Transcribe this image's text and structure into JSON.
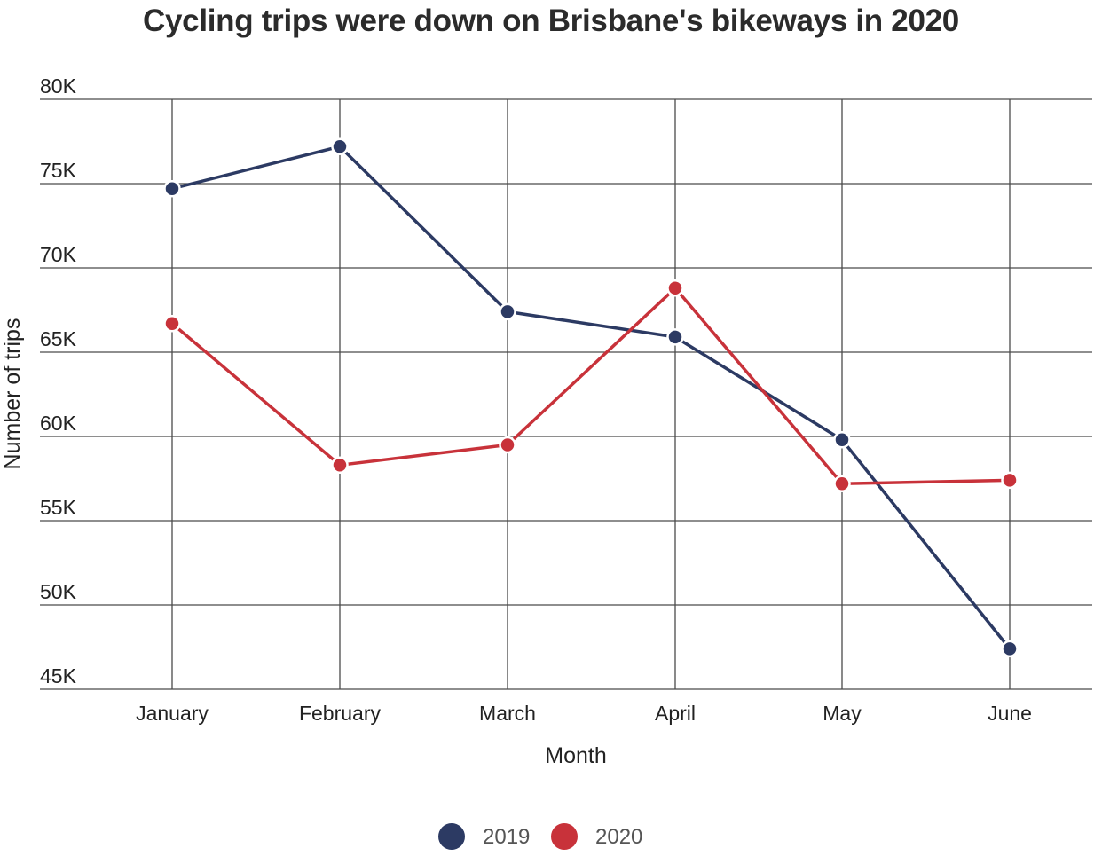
{
  "chart_data": {
    "type": "line",
    "title": "Cycling trips were down on Brisbane's bikeways in 2020",
    "xlabel": "Month",
    "ylabel": "Number of trips",
    "categories": [
      "January",
      "February",
      "March",
      "April",
      "May",
      "June"
    ],
    "y_ticks": [
      "45K",
      "50K",
      "55K",
      "60K",
      "65K",
      "70K",
      "75K",
      "80K"
    ],
    "y_tick_values": [
      45000,
      50000,
      55000,
      60000,
      65000,
      70000,
      75000,
      80000
    ],
    "ylim": [
      45000,
      80000
    ],
    "grid": true,
    "legend_position": "bottom-center",
    "series": [
      {
        "name": "2019",
        "color": "#2c3a63",
        "values": [
          74700,
          77200,
          67400,
          65900,
          59800,
          47400
        ]
      },
      {
        "name": "2020",
        "color": "#c8323a",
        "values": [
          66700,
          58300,
          59500,
          68800,
          57200,
          57400
        ]
      }
    ]
  }
}
